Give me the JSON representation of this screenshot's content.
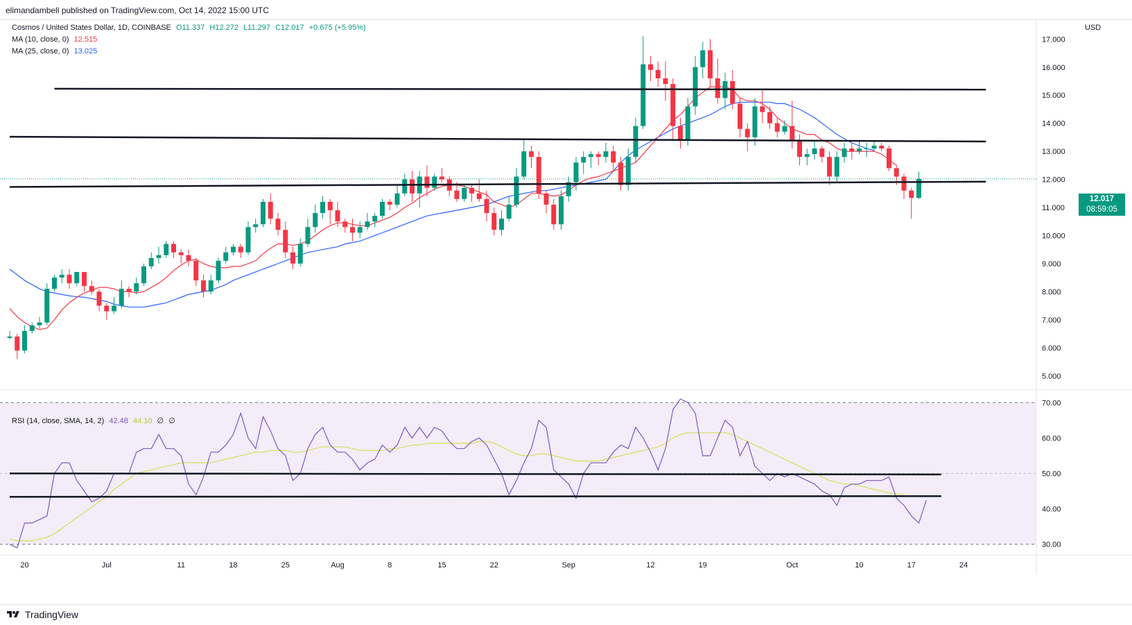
{
  "header": {
    "publisher_line": "elimandambell published on TradingView.com, Oct 14, 2022 15:00 UTC"
  },
  "legend": {
    "symbol": "Cosmos / United States Dollar, 1D, COINBASE",
    "open": "O11.337",
    "high": "H12.272",
    "low": "L11.297",
    "close": "C12.017",
    "change": "+0.675 (+5.95%)",
    "ma10_label": "MA (10, close, 0)",
    "ma10_value": "12.515",
    "ma25_label": "MA (25, close, 0)",
    "ma25_value": "13.025",
    "rsi_label": "RSI (14, close, SMA, 14, 2)",
    "rsi_value": "42.48",
    "rsi_sma_value": "44.10",
    "rsi_extra1": "∅",
    "rsi_extra2": "∅"
  },
  "price_axis": {
    "currency": "USD",
    "current_price": "12.017",
    "countdown": "08:59:05"
  },
  "footer": {
    "brand": "TradingView"
  },
  "colors": {
    "up": "#089981",
    "down": "#f23645",
    "ma10": "#f23645",
    "ma25": "#2962ff",
    "rsi": "#7e57c2",
    "rsi_sma": "#d4e157",
    "trendline": "#131722",
    "rsi_band": "#ede7f6"
  },
  "chart_data": {
    "type": "candlestick",
    "title": "Cosmos / United States Dollar, 1D, COINBASE",
    "ylabel": "USD",
    "ylim": [
      4.5,
      17.7
    ],
    "price_ticks": [
      "5.000",
      "6.000",
      "7.000",
      "8.000",
      "9.000",
      "10.000",
      "11.000",
      "12.000",
      "13.000",
      "14.000",
      "15.000",
      "16.000",
      "17.000"
    ],
    "x_ticks": [
      {
        "label": "20",
        "day": 2
      },
      {
        "label": "Jul",
        "day": 13
      },
      {
        "label": "11",
        "day": 23
      },
      {
        "label": "18",
        "day": 30
      },
      {
        "label": "25",
        "day": 37
      },
      {
        "label": "Aug",
        "day": 44
      },
      {
        "label": "8",
        "day": 51
      },
      {
        "label": "15",
        "day": 58
      },
      {
        "label": "22",
        "day": 65
      },
      {
        "label": "Sep",
        "day": 75
      },
      {
        "label": "12",
        "day": 86
      },
      {
        "label": "19",
        "day": 93
      },
      {
        "label": "Oct",
        "day": 105
      },
      {
        "label": "10",
        "day": 114
      },
      {
        "label": "17",
        "day": 121
      },
      {
        "label": "24",
        "day": 128
      }
    ],
    "candles": [
      [
        6.35,
        6.4,
        6.6,
        6.3
      ],
      [
        6.4,
        5.9,
        6.5,
        5.6
      ],
      [
        5.9,
        6.6,
        6.8,
        5.8
      ],
      [
        6.6,
        6.8,
        6.9,
        6.5
      ],
      [
        6.8,
        6.9,
        7.1,
        6.7
      ],
      [
        6.9,
        8.1,
        8.3,
        6.8
      ],
      [
        8.1,
        8.5,
        8.6,
        8.0
      ],
      [
        8.5,
        8.6,
        8.8,
        8.3
      ],
      [
        8.6,
        8.3,
        8.8,
        8.1
      ],
      [
        8.3,
        8.7,
        8.7,
        8.2
      ],
      [
        8.7,
        8.2,
        8.6,
        8.0
      ],
      [
        8.2,
        8.0,
        8.4,
        7.9
      ],
      [
        8.0,
        7.5,
        8.1,
        7.3
      ],
      [
        7.5,
        7.3,
        7.6,
        7.0
      ],
      [
        7.3,
        7.5,
        7.8,
        7.2
      ],
      [
        7.5,
        8.1,
        8.4,
        7.4
      ],
      [
        8.1,
        8.0,
        8.2,
        7.8
      ],
      [
        8.0,
        8.3,
        8.5,
        7.9
      ],
      [
        8.3,
        8.9,
        9.0,
        8.2
      ],
      [
        8.9,
        9.2,
        9.4,
        8.8
      ],
      [
        9.2,
        9.3,
        9.6,
        9.0
      ],
      [
        9.3,
        9.7,
        9.8,
        9.2
      ],
      [
        9.7,
        9.4,
        9.8,
        9.2
      ],
      [
        9.4,
        9.3,
        9.5,
        9.0
      ],
      [
        9.3,
        9.1,
        9.5,
        8.9
      ],
      [
        9.1,
        8.4,
        9.2,
        8.2
      ],
      [
        8.4,
        8.0,
        8.6,
        7.8
      ],
      [
        8.0,
        8.4,
        8.6,
        7.9
      ],
      [
        8.4,
        9.1,
        9.2,
        8.3
      ],
      [
        9.1,
        9.4,
        9.6,
        9.0
      ],
      [
        9.4,
        9.6,
        9.7,
        9.3
      ],
      [
        9.6,
        9.4,
        9.7,
        9.2
      ],
      [
        9.4,
        10.3,
        10.5,
        9.3
      ],
      [
        10.3,
        10.4,
        10.6,
        10.1
      ],
      [
        10.4,
        11.2,
        11.3,
        10.3
      ],
      [
        11.2,
        10.6,
        11.5,
        10.4
      ],
      [
        10.6,
        10.2,
        10.8,
        10.0
      ],
      [
        10.2,
        9.4,
        10.5,
        9.2
      ],
      [
        9.4,
        9.0,
        9.6,
        8.8
      ],
      [
        9.0,
        9.7,
        9.9,
        8.9
      ],
      [
        9.7,
        10.3,
        10.6,
        9.6
      ],
      [
        10.3,
        10.8,
        11.1,
        10.1
      ],
      [
        10.8,
        11.2,
        11.4,
        10.6
      ],
      [
        11.2,
        10.9,
        11.3,
        10.4
      ],
      [
        10.9,
        10.5,
        11.2,
        10.3
      ],
      [
        10.5,
        10.3,
        10.6,
        10.1
      ],
      [
        10.3,
        10.1,
        10.6,
        9.8
      ],
      [
        10.1,
        10.3,
        10.5,
        9.9
      ],
      [
        10.3,
        10.5,
        10.8,
        10.2
      ],
      [
        10.5,
        10.7,
        10.8,
        10.3
      ],
      [
        10.7,
        11.2,
        11.3,
        10.6
      ],
      [
        11.2,
        11.1,
        11.3,
        10.9
      ],
      [
        11.1,
        11.5,
        11.8,
        11.0
      ],
      [
        11.5,
        12.0,
        12.2,
        11.4
      ],
      [
        12.0,
        11.5,
        12.3,
        11.2
      ],
      [
        11.5,
        12.1,
        12.3,
        11.0
      ],
      [
        12.1,
        11.7,
        12.5,
        11.4
      ],
      [
        11.7,
        12.1,
        12.2,
        11.6
      ],
      [
        12.1,
        12.0,
        12.4,
        11.9
      ],
      [
        12.0,
        11.6,
        12.1,
        11.4
      ],
      [
        11.6,
        11.3,
        11.9,
        11.2
      ],
      [
        11.3,
        11.7,
        11.8,
        11.2
      ],
      [
        11.7,
        11.5,
        11.8,
        11.2
      ],
      [
        11.5,
        11.3,
        12.0,
        11.2
      ],
      [
        11.3,
        10.8,
        11.6,
        10.5
      ],
      [
        10.8,
        10.2,
        11.0,
        10.0
      ],
      [
        10.2,
        10.6,
        10.9,
        10.0
      ],
      [
        10.6,
        11.1,
        11.4,
        10.5
      ],
      [
        11.1,
        12.1,
        12.4,
        11.0
      ],
      [
        12.1,
        13.0,
        13.4,
        12.0
      ],
      [
        13.0,
        12.8,
        13.2,
        12.4
      ],
      [
        12.8,
        11.5,
        13.0,
        11.3
      ],
      [
        11.5,
        11.1,
        11.6,
        10.8
      ],
      [
        11.1,
        10.4,
        11.3,
        10.2
      ],
      [
        10.4,
        11.4,
        11.6,
        10.2
      ],
      [
        11.4,
        11.9,
        12.1,
        11.2
      ],
      [
        11.9,
        12.6,
        12.8,
        11.6
      ],
      [
        12.6,
        12.8,
        13.0,
        12.2
      ],
      [
        12.8,
        12.9,
        13.0,
        12.4
      ],
      [
        12.9,
        12.8,
        13.0,
        12.5
      ],
      [
        12.8,
        13.0,
        13.3,
        12.6
      ],
      [
        13.0,
        12.6,
        13.2,
        12.3
      ],
      [
        12.6,
        11.8,
        12.8,
        11.6
      ],
      [
        11.8,
        12.8,
        13.1,
        11.6
      ],
      [
        12.8,
        13.9,
        14.2,
        12.6
      ],
      [
        13.9,
        16.1,
        17.1,
        13.8
      ],
      [
        16.1,
        15.9,
        16.4,
        15.5
      ],
      [
        15.9,
        15.6,
        16.2,
        15.3
      ],
      [
        15.6,
        15.4,
        16.2,
        14.8
      ],
      [
        15.4,
        13.9,
        15.6,
        13.4
      ],
      [
        13.9,
        13.4,
        14.2,
        13.1
      ],
      [
        13.4,
        14.6,
        14.9,
        13.2
      ],
      [
        14.6,
        16.0,
        16.4,
        14.3
      ],
      [
        16.0,
        16.6,
        16.9,
        15.6
      ],
      [
        16.6,
        15.6,
        17.0,
        15.3
      ],
      [
        15.6,
        14.9,
        16.3,
        14.7
      ],
      [
        14.9,
        15.5,
        15.8,
        14.5
      ],
      [
        15.5,
        14.7,
        15.9,
        14.5
      ],
      [
        14.7,
        13.8,
        14.9,
        13.5
      ],
      [
        13.8,
        13.5,
        14.0,
        13.0
      ],
      [
        13.5,
        14.6,
        14.9,
        13.2
      ],
      [
        14.6,
        14.4,
        15.2,
        14.0
      ],
      [
        14.4,
        14.0,
        14.6,
        13.8
      ],
      [
        14.0,
        13.7,
        14.2,
        13.5
      ],
      [
        13.7,
        13.9,
        14.1,
        13.6
      ],
      [
        13.9,
        13.4,
        14.8,
        13.1
      ],
      [
        13.4,
        12.8,
        13.6,
        12.5
      ],
      [
        12.8,
        12.9,
        13.1,
        12.5
      ],
      [
        12.9,
        13.1,
        13.4,
        12.7
      ],
      [
        13.1,
        12.8,
        13.2,
        12.6
      ],
      [
        12.8,
        12.1,
        13.0,
        11.8
      ],
      [
        12.1,
        12.8,
        13.0,
        11.9
      ],
      [
        12.8,
        13.1,
        13.3,
        12.6
      ],
      [
        13.1,
        13.0,
        13.3,
        12.7
      ],
      [
        13.0,
        13.1,
        13.4,
        12.9
      ],
      [
        13.1,
        13.1,
        13.3,
        12.8
      ],
      [
        13.1,
        13.2,
        13.4,
        13.0
      ],
      [
        13.2,
        13.1,
        13.3,
        13.0
      ],
      [
        13.1,
        12.4,
        13.2,
        12.3
      ],
      [
        12.4,
        12.1,
        12.5,
        11.8
      ],
      [
        12.1,
        11.6,
        12.2,
        11.3
      ],
      [
        11.6,
        11.34,
        11.7,
        10.6
      ],
      [
        11.34,
        12.017,
        12.272,
        11.297
      ]
    ],
    "ma10": [
      7.4,
      7.1,
      6.9,
      6.75,
      6.65,
      6.7,
      7.0,
      7.35,
      7.6,
      7.8,
      7.95,
      8.05,
      8.15,
      8.15,
      8.1,
      8.0,
      8.0,
      7.95,
      8.0,
      8.15,
      8.3,
      8.5,
      8.75,
      8.95,
      9.1,
      9.15,
      9.0,
      8.9,
      8.85,
      8.85,
      8.9,
      8.9,
      9.0,
      9.1,
      9.35,
      9.55,
      9.7,
      9.7,
      9.65,
      9.7,
      9.8,
      10.0,
      10.2,
      10.35,
      10.45,
      10.45,
      10.4,
      10.35,
      10.35,
      10.45,
      10.55,
      10.65,
      10.8,
      11.0,
      11.15,
      11.35,
      11.5,
      11.65,
      11.75,
      11.8,
      11.8,
      11.75,
      11.65,
      11.55,
      11.45,
      11.2,
      11.1,
      11.0,
      11.1,
      11.3,
      11.5,
      11.5,
      11.45,
      11.4,
      11.45,
      11.6,
      11.8,
      11.95,
      12.05,
      12.1,
      12.2,
      12.3,
      12.4,
      12.5,
      12.6,
      12.9,
      13.2,
      13.5,
      13.8,
      14.1,
      14.3,
      14.6,
      14.9,
      15.1,
      15.3,
      15.3,
      15.3,
      15.2,
      14.9,
      14.8,
      14.8,
      14.7,
      14.5,
      14.2,
      14.0,
      13.8,
      13.7,
      13.6,
      13.6,
      13.4,
      13.3,
      13.1,
      13.0,
      13.0,
      13.0,
      13.0,
      13.0,
      12.9,
      12.7,
      12.5
    ],
    "ma25": [
      8.8,
      8.6,
      8.4,
      8.25,
      8.1,
      8.0,
      7.95,
      7.9,
      7.85,
      7.82,
      7.8,
      7.75,
      7.7,
      7.65,
      7.55,
      7.5,
      7.45,
      7.45,
      7.45,
      7.5,
      7.55,
      7.6,
      7.7,
      7.8,
      7.9,
      7.95,
      8.0,
      8.05,
      8.15,
      8.25,
      8.4,
      8.5,
      8.6,
      8.7,
      8.8,
      8.9,
      9.0,
      9.1,
      9.2,
      9.3,
      9.4,
      9.45,
      9.5,
      9.55,
      9.6,
      9.7,
      9.75,
      9.8,
      9.9,
      10.0,
      10.1,
      10.2,
      10.3,
      10.4,
      10.5,
      10.6,
      10.7,
      10.75,
      10.8,
      10.85,
      10.9,
      10.95,
      11.0,
      11.05,
      11.1,
      11.2,
      11.3,
      11.4,
      11.45,
      11.5,
      11.55,
      11.6,
      11.6,
      11.65,
      11.7,
      11.75,
      11.8,
      11.85,
      11.9,
      11.95,
      12.0,
      12.3,
      12.6,
      12.85,
      13.05,
      13.2,
      13.35,
      13.5,
      13.65,
      13.8,
      13.9,
      14.0,
      14.1,
      14.2,
      14.3,
      14.45,
      14.6,
      14.7,
      14.75,
      14.75,
      14.75,
      14.75,
      14.75,
      14.7,
      14.7,
      14.6,
      14.5,
      14.35,
      14.2,
      14.0,
      13.8,
      13.6,
      13.45,
      13.3,
      13.2,
      13.1,
      13.025
    ],
    "rsi": [
      30,
      29,
      36,
      36,
      37,
      38,
      50,
      53,
      53,
      48,
      45,
      42,
      43,
      45,
      50,
      50,
      50,
      56,
      57,
      57,
      61,
      57,
      57,
      55,
      47,
      44,
      49,
      56,
      56,
      58,
      61,
      67,
      60,
      57,
      66,
      62,
      57,
      55,
      48,
      50,
      57,
      61,
      63,
      58,
      56,
      56,
      54,
      51,
      53,
      54,
      58,
      56,
      58,
      63,
      60,
      63,
      60,
      63,
      62,
      59,
      57,
      57,
      59,
      60,
      58,
      54,
      50,
      44,
      48,
      53,
      57,
      65,
      63,
      51,
      49,
      47,
      43,
      50,
      53,
      53,
      53,
      56,
      58,
      57,
      63,
      60,
      56,
      51,
      57,
      68,
      71,
      70,
      67,
      55,
      55,
      60,
      65,
      63,
      55,
      59,
      52,
      50,
      48,
      50,
      49,
      50,
      49,
      48,
      47,
      45,
      44,
      41,
      46,
      47,
      47,
      48,
      48,
      48,
      49,
      43,
      41,
      38,
      36,
      42.48
    ],
    "rsi_sma": [
      31.5,
      31,
      31,
      31,
      31.5,
      32,
      33,
      34.5,
      36,
      37.5,
      39,
      40.5,
      42,
      43.5,
      45.5,
      47,
      48.5,
      50,
      50.5,
      51,
      51.5,
      52,
      52.5,
      53,
      53,
      53,
      53,
      53,
      53.5,
      54,
      54.5,
      55,
      55.5,
      56,
      56,
      56.5,
      56.5,
      56.5,
      56,
      56,
      56.5,
      57,
      57.5,
      57.5,
      57.5,
      57.5,
      57,
      56.5,
      56.5,
      56.5,
      56.5,
      57,
      57,
      57.5,
      58,
      58,
      58.5,
      58.5,
      58.5,
      58.5,
      58.5,
      58.5,
      58.5,
      59,
      59,
      58.5,
      57.5,
      56.5,
      55.5,
      55,
      55,
      55.5,
      55.5,
      55,
      54.5,
      54,
      53.5,
      53.5,
      53.5,
      53.5,
      54,
      54.5,
      55,
      55.5,
      56,
      56.5,
      57,
      57.5,
      58.5,
      60,
      61,
      61.5,
      61.5,
      61.5,
      61.5,
      61.5,
      61.5,
      61,
      60,
      59,
      58,
      57,
      56,
      55,
      54,
      53,
      52,
      51,
      50,
      49,
      48,
      47.5,
      47,
      47,
      46.5,
      46,
      45.5,
      45,
      44.5,
      44.1,
      44.1
    ],
    "trendlines": [
      {
        "name": "resistance-upper",
        "from": {
          "day": 6,
          "price": 15.23
        },
        "to": {
          "day": 131,
          "price": 15.2
        }
      },
      {
        "name": "resistance-middle",
        "from": {
          "day": 0,
          "price": 13.52
        },
        "to": {
          "day": 131,
          "price": 13.35
        }
      },
      {
        "name": "support-lower",
        "from": {
          "day": 0,
          "price": 11.73
        },
        "to": {
          "day": 131,
          "price": 11.92
        }
      }
    ],
    "rsi_panel": {
      "ylim": [
        27,
        73
      ],
      "ticks": [
        "30.00",
        "40.00",
        "50.00",
        "60.00",
        "70.00"
      ],
      "band": [
        30,
        70
      ],
      "hlines": [
        {
          "name": "rsi-line-50",
          "day_from": 0,
          "day_to": 125,
          "value_from": 50.0,
          "value_to": 49.7
        },
        {
          "name": "rsi-line-43",
          "day_from": 0,
          "day_to": 125,
          "value_from": 43.4,
          "value_to": 43.6
        }
      ]
    }
  }
}
